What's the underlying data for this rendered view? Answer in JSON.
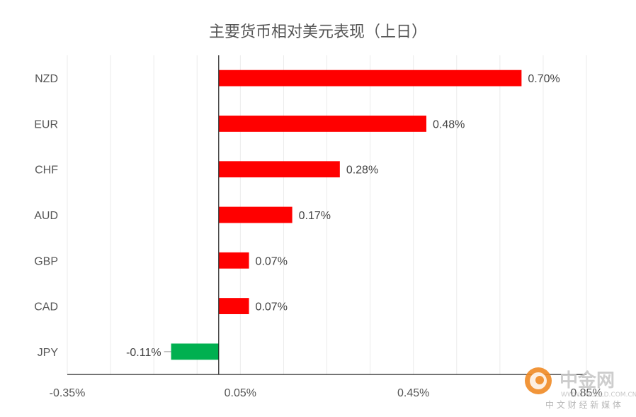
{
  "chart_data": {
    "type": "bar",
    "orientation": "horizontal",
    "title": "主要货币相对美元表现（上日）",
    "categories": [
      "NZD",
      "EUR",
      "CHF",
      "AUD",
      "GBP",
      "CAD",
      "JPY"
    ],
    "values": [
      0.7,
      0.48,
      0.28,
      0.17,
      0.07,
      0.07,
      -0.11
    ],
    "data_labels": [
      "0.70%",
      "0.48%",
      "0.28%",
      "0.17%",
      "0.07%",
      "0.07%",
      "-0.11%"
    ],
    "xlim": [
      -0.35,
      0.85
    ],
    "x_ticks": [
      -0.35,
      0.05,
      0.45,
      0.85
    ],
    "x_tick_labels": [
      "-0.35%",
      "0.05%",
      "0.45%",
      "0.85%"
    ],
    "gridlines": true,
    "colors": {
      "positive": "#ff0000",
      "negative": "#00b050"
    }
  },
  "watermark": {
    "brand": "中金网",
    "domain": "WWW.CNGOLD.COM.CN",
    "tagline": "中 文 财 经 新 媒 体",
    "colors": {
      "logo": "#f08a24",
      "text": "#c8c8c8"
    }
  }
}
